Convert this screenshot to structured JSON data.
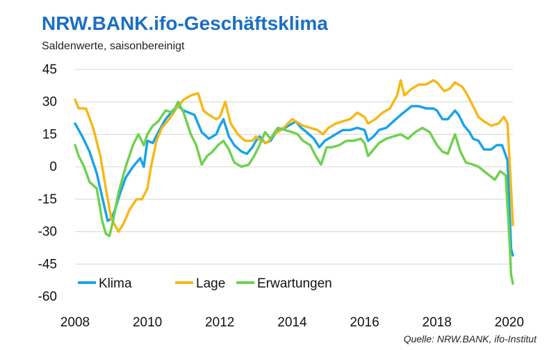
{
  "chart_data": {
    "type": "line",
    "title": "NRW.BANK.ifo-Geschäftsklima",
    "subtitle": "Saldenwerte, saisonbereinigt",
    "source": "Quelle:  NRW.BANK, ifo-Institut",
    "xlim": [
      2008,
      2020.1
    ],
    "ylim": [
      -60,
      45
    ],
    "xticks": [
      "2008",
      "2010",
      "2012",
      "2014",
      "2016",
      "2018",
      "2020"
    ],
    "xtick_values": [
      2008,
      2010,
      2012,
      2014,
      2016,
      2018,
      2020
    ],
    "yticks": [
      "45",
      "30",
      "15",
      "0",
      "-15",
      "-30",
      "-45",
      "-60"
    ],
    "ytick_values": [
      45,
      30,
      15,
      0,
      -15,
      -30,
      -45,
      -60
    ],
    "grid": true,
    "legend_position": "bottom-left",
    "series": [
      {
        "name": "Klima",
        "color": "#1aa3e8",
        "points": [
          [
            2008.0,
            20
          ],
          [
            2008.2,
            14
          ],
          [
            2008.4,
            7
          ],
          [
            2008.6,
            -3
          ],
          [
            2008.75,
            -14
          ],
          [
            2008.9,
            -25
          ],
          [
            2009.0,
            -24
          ],
          [
            2009.1,
            -20
          ],
          [
            2009.25,
            -12
          ],
          [
            2009.4,
            -5
          ],
          [
            2009.6,
            0
          ],
          [
            2009.8,
            4
          ],
          [
            2009.9,
            0
          ],
          [
            2010.0,
            12
          ],
          [
            2010.15,
            11
          ],
          [
            2010.3,
            16
          ],
          [
            2010.5,
            22
          ],
          [
            2010.7,
            26
          ],
          [
            2010.85,
            28
          ],
          [
            2011.0,
            26
          ],
          [
            2011.15,
            25
          ],
          [
            2011.3,
            24
          ],
          [
            2011.5,
            16
          ],
          [
            2011.7,
            13
          ],
          [
            2011.9,
            15
          ],
          [
            2012.0,
            19
          ],
          [
            2012.1,
            22
          ],
          [
            2012.25,
            14
          ],
          [
            2012.4,
            10
          ],
          [
            2012.6,
            7
          ],
          [
            2012.75,
            6
          ],
          [
            2012.9,
            9
          ],
          [
            2013.0,
            12
          ],
          [
            2013.1,
            14
          ],
          [
            2013.25,
            11
          ],
          [
            2013.4,
            12
          ],
          [
            2013.6,
            17
          ],
          [
            2013.8,
            18
          ],
          [
            2014.0,
            20
          ],
          [
            2014.1,
            21
          ],
          [
            2014.25,
            18
          ],
          [
            2014.4,
            16
          ],
          [
            2014.6,
            13
          ],
          [
            2014.75,
            9
          ],
          [
            2014.9,
            12
          ],
          [
            2015.0,
            13
          ],
          [
            2015.2,
            15
          ],
          [
            2015.4,
            17
          ],
          [
            2015.6,
            17
          ],
          [
            2015.8,
            18
          ],
          [
            2016.0,
            17
          ],
          [
            2016.1,
            12
          ],
          [
            2016.25,
            14
          ],
          [
            2016.4,
            17
          ],
          [
            2016.6,
            18
          ],
          [
            2016.8,
            21
          ],
          [
            2017.0,
            24
          ],
          [
            2017.15,
            26
          ],
          [
            2017.3,
            28
          ],
          [
            2017.5,
            28
          ],
          [
            2017.7,
            27
          ],
          [
            2017.9,
            27
          ],
          [
            2018.0,
            26
          ],
          [
            2018.15,
            22
          ],
          [
            2018.3,
            22
          ],
          [
            2018.5,
            26
          ],
          [
            2018.6,
            24
          ],
          [
            2018.75,
            19
          ],
          [
            2018.9,
            16
          ],
          [
            2019.0,
            13
          ],
          [
            2019.15,
            12
          ],
          [
            2019.3,
            8
          ],
          [
            2019.5,
            8
          ],
          [
            2019.65,
            10
          ],
          [
            2019.8,
            10
          ],
          [
            2019.95,
            3
          ],
          [
            2020.05,
            -38
          ],
          [
            2020.1,
            -41
          ]
        ]
      },
      {
        "name": "Lage",
        "color": "#f6b817",
        "points": [
          [
            2008.0,
            31
          ],
          [
            2008.1,
            27
          ],
          [
            2008.3,
            27
          ],
          [
            2008.5,
            18
          ],
          [
            2008.7,
            5
          ],
          [
            2008.85,
            -10
          ],
          [
            2009.0,
            -24
          ],
          [
            2009.1,
            -27
          ],
          [
            2009.2,
            -30
          ],
          [
            2009.35,
            -26
          ],
          [
            2009.5,
            -20
          ],
          [
            2009.7,
            -15
          ],
          [
            2009.85,
            -15
          ],
          [
            2010.0,
            -10
          ],
          [
            2010.1,
            0
          ],
          [
            2010.25,
            12
          ],
          [
            2010.4,
            18
          ],
          [
            2010.6,
            22
          ],
          [
            2010.8,
            27
          ],
          [
            2011.0,
            31
          ],
          [
            2011.2,
            33
          ],
          [
            2011.4,
            34
          ],
          [
            2011.55,
            26
          ],
          [
            2011.7,
            24
          ],
          [
            2011.9,
            22
          ],
          [
            2012.0,
            23
          ],
          [
            2012.15,
            30
          ],
          [
            2012.3,
            20
          ],
          [
            2012.5,
            15
          ],
          [
            2012.7,
            12
          ],
          [
            2012.9,
            12
          ],
          [
            2013.0,
            14
          ],
          [
            2013.15,
            12
          ],
          [
            2013.3,
            11
          ],
          [
            2013.5,
            15
          ],
          [
            2013.7,
            17
          ],
          [
            2014.0,
            22
          ],
          [
            2014.1,
            21
          ],
          [
            2014.3,
            19
          ],
          [
            2014.5,
            18
          ],
          [
            2014.7,
            17
          ],
          [
            2014.85,
            15
          ],
          [
            2015.0,
            18
          ],
          [
            2015.2,
            20
          ],
          [
            2015.4,
            21
          ],
          [
            2015.6,
            22
          ],
          [
            2015.8,
            25
          ],
          [
            2016.0,
            23
          ],
          [
            2016.1,
            20
          ],
          [
            2016.3,
            22
          ],
          [
            2016.5,
            25
          ],
          [
            2016.7,
            27
          ],
          [
            2016.9,
            33
          ],
          [
            2017.0,
            40
          ],
          [
            2017.1,
            33
          ],
          [
            2017.3,
            36
          ],
          [
            2017.5,
            38
          ],
          [
            2017.7,
            38
          ],
          [
            2017.9,
            40
          ],
          [
            2018.0,
            39
          ],
          [
            2018.2,
            35
          ],
          [
            2018.35,
            36
          ],
          [
            2018.5,
            39
          ],
          [
            2018.7,
            37
          ],
          [
            2018.85,
            33
          ],
          [
            2019.0,
            28
          ],
          [
            2019.15,
            23
          ],
          [
            2019.3,
            21
          ],
          [
            2019.5,
            19
          ],
          [
            2019.7,
            20
          ],
          [
            2019.85,
            23
          ],
          [
            2019.95,
            20
          ],
          [
            2020.05,
            -10
          ],
          [
            2020.1,
            -27
          ]
        ]
      },
      {
        "name": "Erwartungen",
        "color": "#6fd14f",
        "points": [
          [
            2008.0,
            10
          ],
          [
            2008.1,
            5
          ],
          [
            2008.25,
            0
          ],
          [
            2008.4,
            -7
          ],
          [
            2008.6,
            -10
          ],
          [
            2008.75,
            -25
          ],
          [
            2008.85,
            -31
          ],
          [
            2008.95,
            -32
          ],
          [
            2009.05,
            -25
          ],
          [
            2009.2,
            -12
          ],
          [
            2009.4,
            0
          ],
          [
            2009.6,
            10
          ],
          [
            2009.75,
            15
          ],
          [
            2009.9,
            10
          ],
          [
            2010.0,
            15
          ],
          [
            2010.15,
            19
          ],
          [
            2010.3,
            21
          ],
          [
            2010.5,
            26
          ],
          [
            2010.7,
            25
          ],
          [
            2010.85,
            30
          ],
          [
            2011.0,
            25
          ],
          [
            2011.2,
            15
          ],
          [
            2011.35,
            10
          ],
          [
            2011.5,
            1
          ],
          [
            2011.65,
            5
          ],
          [
            2011.8,
            7
          ],
          [
            2011.95,
            10
          ],
          [
            2012.1,
            12
          ],
          [
            2012.25,
            8
          ],
          [
            2012.4,
            2
          ],
          [
            2012.6,
            0
          ],
          [
            2012.8,
            1
          ],
          [
            2012.95,
            5
          ],
          [
            2013.1,
            10
          ],
          [
            2013.25,
            16
          ],
          [
            2013.4,
            13
          ],
          [
            2013.6,
            18
          ],
          [
            2013.8,
            17
          ],
          [
            2014.0,
            16
          ],
          [
            2014.15,
            15
          ],
          [
            2014.3,
            12
          ],
          [
            2014.5,
            10
          ],
          [
            2014.65,
            5
          ],
          [
            2014.8,
            1
          ],
          [
            2014.95,
            9
          ],
          [
            2015.1,
            9
          ],
          [
            2015.3,
            10
          ],
          [
            2015.5,
            12
          ],
          [
            2015.7,
            12
          ],
          [
            2015.9,
            13
          ],
          [
            2016.0,
            11
          ],
          [
            2016.1,
            5
          ],
          [
            2016.25,
            8
          ],
          [
            2016.4,
            11
          ],
          [
            2016.6,
            13
          ],
          [
            2016.8,
            14
          ],
          [
            2017.0,
            15
          ],
          [
            2017.2,
            13
          ],
          [
            2017.4,
            16
          ],
          [
            2017.6,
            18
          ],
          [
            2017.8,
            16
          ],
          [
            2018.0,
            10
          ],
          [
            2018.15,
            7
          ],
          [
            2018.3,
            6
          ],
          [
            2018.5,
            15
          ],
          [
            2018.65,
            7
          ],
          [
            2018.8,
            2
          ],
          [
            2019.0,
            1
          ],
          [
            2019.15,
            0
          ],
          [
            2019.3,
            -2
          ],
          [
            2019.45,
            -4
          ],
          [
            2019.6,
            -6
          ],
          [
            2019.75,
            -2
          ],
          [
            2019.9,
            -4
          ],
          [
            2020.0,
            -32
          ],
          [
            2020.05,
            -50
          ],
          [
            2020.1,
            -54
          ]
        ]
      }
    ]
  }
}
